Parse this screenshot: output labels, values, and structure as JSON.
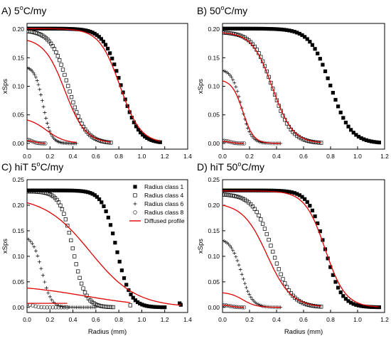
{
  "figure": {
    "legend": [
      {
        "label": "Radius class 1",
        "marker": "filled-square"
      },
      {
        "label": "Radius class 4",
        "marker": "open-square"
      },
      {
        "label": "Radius class 6",
        "marker": "plus"
      },
      {
        "label": "Radius class 8",
        "marker": "open-circle"
      },
      {
        "label": "Diffused profile",
        "marker": "red-line"
      }
    ],
    "colors": {
      "markers": "#000000",
      "diffused": "#e00000",
      "axes": "#000000"
    }
  },
  "chart_data": [
    {
      "type": "scatter",
      "panel_label": "A) 5",
      "panel_sup": "o",
      "panel_tail": "C/my",
      "xlabel": "",
      "ylabel": "xSps",
      "xlim": [
        0,
        1.4
      ],
      "ylim": [
        -0.01,
        0.21
      ],
      "xticks": [
        0.0,
        0.2,
        0.4,
        0.6,
        0.8,
        1.0,
        1.2,
        1.4
      ],
      "yticks": [
        0.0,
        0.05,
        0.1,
        0.15,
        0.2
      ],
      "series": [
        {
          "name": "Radius class 1",
          "kind": "sigmoid",
          "y0": 0.201,
          "mid": 0.82,
          "w": 0.075,
          "xmax": 1.16,
          "n": 62
        },
        {
          "name": "Radius class 4",
          "kind": "sigmoid",
          "y0": 0.198,
          "mid": 0.36,
          "w": 0.075,
          "xmax": 0.73,
          "n": 50
        },
        {
          "name": "Radius class 6",
          "kind": "sigmoid",
          "y0": 0.135,
          "mid": 0.14,
          "w": 0.035,
          "xmax": 0.43,
          "n": 40
        },
        {
          "name": "Radius class 8",
          "kind": "sigmoid",
          "y0": 0.007,
          "mid": 0.05,
          "w": 0.02,
          "xmax": 0.16,
          "n": 12
        },
        {
          "name": "Diffused profile",
          "curves": [
            {
              "kind": "sigmoid",
              "y0": 0.201,
              "mid": 0.81,
              "w": 0.09,
              "xmax": 1.16
            },
            {
              "kind": "sigmoid",
              "y0": 0.185,
              "mid": 0.33,
              "w": 0.09,
              "xmax": 0.73
            },
            {
              "kind": "sigmoid",
              "y0": 0.046,
              "mid": 0.17,
              "w": 0.08,
              "xmax": 0.43
            },
            {
              "kind": "sigmoid",
              "y0": 0.006,
              "mid": 0.06,
              "w": 0.03,
              "xmax": 0.16
            }
          ]
        }
      ]
    },
    {
      "type": "scatter",
      "panel_label": "B) 50",
      "panel_sup": "o",
      "panel_tail": "C/my",
      "xlabel": "",
      "ylabel": "xSps",
      "xlim": [
        0,
        1.2
      ],
      "ylim": [
        -0.01,
        0.21
      ],
      "xticks": [
        0.0,
        0.2,
        0.4,
        0.6,
        0.8,
        1.0,
        1.2
      ],
      "yticks": [
        0.0,
        0.05,
        0.1,
        0.15,
        0.2
      ],
      "series": [
        {
          "name": "Radius class 1",
          "kind": "sigmoid",
          "y0": 0.201,
          "mid": 0.8,
          "w": 0.075,
          "xmax": 1.16,
          "n": 62
        },
        {
          "name": "Radius class 4",
          "kind": "sigmoid",
          "y0": 0.195,
          "mid": 0.37,
          "w": 0.07,
          "xmax": 0.73,
          "n": 50
        },
        {
          "name": "Radius class 6",
          "kind": "sigmoid",
          "y0": 0.13,
          "mid": 0.14,
          "w": 0.035,
          "xmax": 0.43,
          "n": 40
        },
        {
          "name": "Radius class 8",
          "kind": "sigmoid",
          "y0": 0.005,
          "mid": 0.06,
          "w": 0.02,
          "xmax": 0.16,
          "n": 12
        },
        {
          "name": "Diffused profile",
          "curves": [
            {
              "kind": "sigmoid",
              "y0": 0.195,
              "mid": 0.37,
              "w": 0.075,
              "xmax": 0.73
            },
            {
              "kind": "sigmoid",
              "y0": 0.112,
              "mid": 0.15,
              "w": 0.04,
              "xmax": 0.43
            },
            {
              "kind": "sigmoid",
              "y0": 0.004,
              "mid": 0.06,
              "w": 0.025,
              "xmax": 0.16
            }
          ]
        }
      ]
    },
    {
      "type": "scatter",
      "panel_label": "C) hiT 5",
      "panel_sup": "o",
      "panel_tail": "C/my",
      "xlabel": "Radius (mm)",
      "ylabel": "xSps",
      "xlim": [
        0,
        1.4
      ],
      "ylim": [
        -0.01,
        0.25
      ],
      "xticks": [
        0.0,
        0.2,
        0.4,
        0.6,
        0.8,
        1.0,
        1.2,
        1.4
      ],
      "yticks": [
        0.0,
        0.05,
        0.1,
        0.15,
        0.2,
        0.25
      ],
      "series": [
        {
          "name": "Radius class 1",
          "kind": "sigmoid",
          "y0": 0.229,
          "mid": 0.78,
          "w": 0.06,
          "xmax": 1.2,
          "n": 62,
          "tail": [
            [
              1.33,
              0.008
            ],
            [
              1.34,
              0.005
            ]
          ]
        },
        {
          "name": "Radius class 4",
          "kind": "sigmoid",
          "y0": 0.227,
          "mid": 0.4,
          "w": 0.055,
          "xmax": 0.75,
          "n": 50,
          "tail": [
            [
              0.9,
              0.004
            ]
          ]
        },
        {
          "name": "Radius class 6",
          "kind": "sigmoid",
          "y0": 0.14,
          "mid": 0.13,
          "w": 0.04,
          "xmax": 0.6,
          "n": 40
        },
        {
          "name": "Radius class 8",
          "kind": "sigmoid",
          "y0": 0.006,
          "mid": 0.06,
          "w": 0.025,
          "xmax": 0.35,
          "n": 15
        },
        {
          "name": "Diffused profile",
          "curves": [
            {
              "kind": "sigmoid",
              "y0": 0.218,
              "mid": 0.55,
              "w": 0.2,
              "xmax": 1.33,
              "tail": [
                [
                  1.34,
                  0.006
                ]
              ]
            },
            {
              "kind": "sigmoid",
              "y0": 0.045,
              "mid": 0.5,
              "w": 0.3,
              "xmax": 0.9
            },
            {
              "kind": "line",
              "points": [
                [
                  0.0,
                  0.008
                ],
                [
                  0.35,
                  0.008
                ]
              ]
            }
          ]
        }
      ]
    },
    {
      "type": "scatter",
      "panel_label": "D) hiT 50",
      "panel_sup": "o",
      "panel_tail": "C/my",
      "xlabel": "Radius (mm)",
      "ylabel": "xSps",
      "xlim": [
        0,
        1.2
      ],
      "ylim": [
        -0.01,
        0.25
      ],
      "xticks": [
        0.0,
        0.2,
        0.4,
        0.6,
        0.8,
        1.0,
        1.2
      ],
      "yticks": [
        0.0,
        0.05,
        0.1,
        0.15,
        0.2,
        0.25
      ],
      "series": [
        {
          "name": "Radius class 1",
          "kind": "sigmoid",
          "y0": 0.229,
          "mid": 0.76,
          "w": 0.06,
          "xmax": 1.16,
          "n": 62
        },
        {
          "name": "Radius class 4",
          "kind": "sigmoid",
          "y0": 0.222,
          "mid": 0.37,
          "w": 0.07,
          "xmax": 0.73,
          "n": 50
        },
        {
          "name": "Radius class 6",
          "kind": "sigmoid",
          "y0": 0.135,
          "mid": 0.14,
          "w": 0.04,
          "xmax": 0.43,
          "n": 40
        },
        {
          "name": "Radius class 8",
          "kind": "sigmoid",
          "y0": 0.005,
          "mid": 0.06,
          "w": 0.025,
          "xmax": 0.16,
          "n": 12
        },
        {
          "name": "Diffused profile",
          "curves": [
            {
              "kind": "sigmoid",
              "y0": 0.228,
              "mid": 0.76,
              "w": 0.075,
              "xmax": 1.16
            },
            {
              "kind": "sigmoid",
              "y0": 0.205,
              "mid": 0.33,
              "w": 0.09,
              "xmax": 0.73
            },
            {
              "kind": "sigmoid",
              "y0": 0.03,
              "mid": 0.15,
              "w": 0.05,
              "xmax": 0.43
            },
            {
              "kind": "sigmoid",
              "y0": 0.005,
              "mid": 0.06,
              "w": 0.025,
              "xmax": 0.16
            }
          ]
        }
      ]
    }
  ]
}
